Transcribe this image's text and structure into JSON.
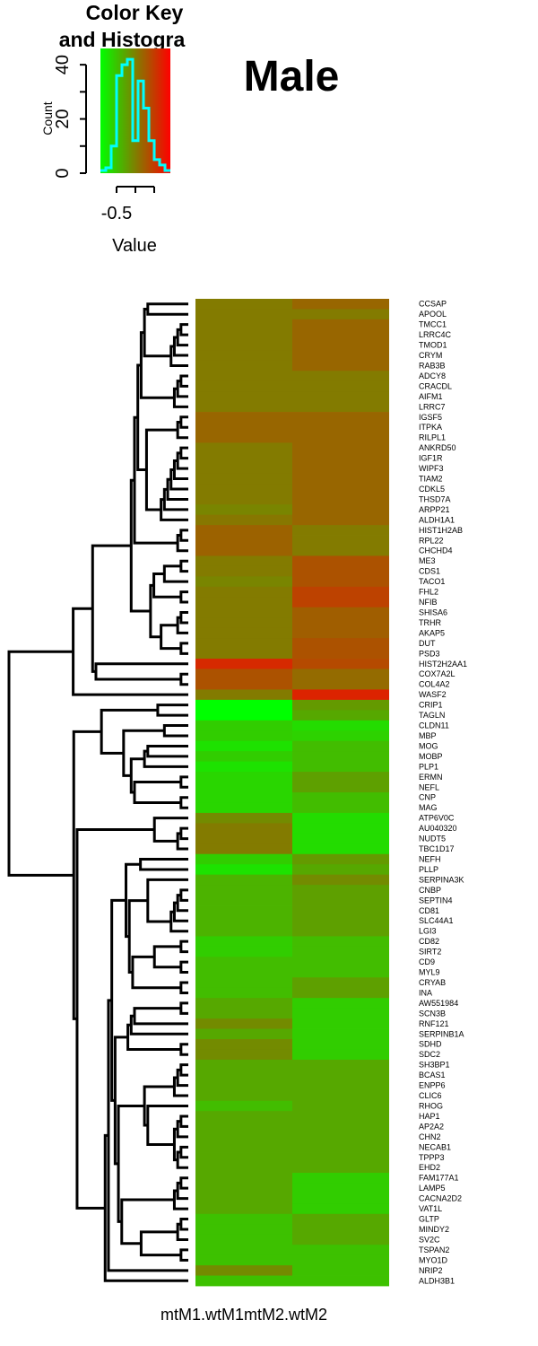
{
  "title": "Male",
  "color_key": {
    "title_line1": "Color Key",
    "title_line2": "and Histogra",
    "xlabel": "Value",
    "ylabel": "Count",
    "x_tick_labels": [
      "-0.5"
    ],
    "y_tick_labels": [
      "0",
      "20",
      "40"
    ],
    "hist_counts": [
      1,
      2,
      10,
      36,
      40,
      42,
      12,
      34,
      24,
      12,
      5,
      3,
      1
    ],
    "ylim": [
      0,
      46
    ],
    "colors": {
      "low": "#00ff00",
      "high": "#ff0000",
      "histogram_line": "#00ffff"
    }
  },
  "chart_data": {
    "type": "heatmap",
    "columns": [
      "mtM1.wtM1",
      "mtM2.wtM2"
    ],
    "x_axis_label": "mtM1.wtM1mtM2.wtM2",
    "color_scale": {
      "low": "#00ff00",
      "mid": "#7f7f00",
      "high": "#ff0000"
    },
    "rows": [
      {
        "gene": "CCSAP",
        "values": [
          0.02,
          0.12
        ]
      },
      {
        "gene": "APOOL",
        "values": [
          0.02,
          0.02
        ]
      },
      {
        "gene": "TMCC1",
        "values": [
          0.02,
          0.12
        ]
      },
      {
        "gene": "LRRC4C",
        "values": [
          0.02,
          0.12
        ]
      },
      {
        "gene": "TMOD1",
        "values": [
          0.02,
          0.12
        ]
      },
      {
        "gene": "CRYM",
        "values": [
          0.02,
          0.12
        ]
      },
      {
        "gene": "RAB3B",
        "values": [
          0.02,
          0.12
        ]
      },
      {
        "gene": "ADCY8",
        "values": [
          0.02,
          0.02
        ]
      },
      {
        "gene": "CRACDL",
        "values": [
          0.02,
          0.02
        ]
      },
      {
        "gene": "AIFM1",
        "values": [
          0.02,
          0.02
        ]
      },
      {
        "gene": "LRRC7",
        "values": [
          0.02,
          0.02
        ]
      },
      {
        "gene": "IGSF5",
        "values": [
          0.12,
          0.12
        ]
      },
      {
        "gene": "ITPKA",
        "values": [
          0.12,
          0.12
        ]
      },
      {
        "gene": "RILPL1",
        "values": [
          0.12,
          0.12
        ]
      },
      {
        "gene": "ANKRD50",
        "values": [
          0.02,
          0.12
        ]
      },
      {
        "gene": "IGF1R",
        "values": [
          0.02,
          0.12
        ]
      },
      {
        "gene": "WIPF3",
        "values": [
          0.02,
          0.12
        ]
      },
      {
        "gene": "TIAM2",
        "values": [
          0.02,
          0.12
        ]
      },
      {
        "gene": "CDKL5",
        "values": [
          0.02,
          0.12
        ]
      },
      {
        "gene": "THSD7A",
        "values": [
          0.02,
          0.12
        ]
      },
      {
        "gene": "ARPP21",
        "values": [
          -0.03,
          0.12
        ]
      },
      {
        "gene": "ALDH1A1",
        "values": [
          0.04,
          0.12
        ]
      },
      {
        "gene": "HIST1H2AB",
        "values": [
          0.14,
          0.02
        ]
      },
      {
        "gene": "RPL22",
        "values": [
          0.14,
          0.02
        ]
      },
      {
        "gene": "CHCHD4",
        "values": [
          0.14,
          0.02
        ]
      },
      {
        "gene": "ME3",
        "values": [
          0.02,
          0.22
        ]
      },
      {
        "gene": "CDS1",
        "values": [
          0.02,
          0.22
        ]
      },
      {
        "gene": "TACO1",
        "values": [
          -0.03,
          0.22
        ]
      },
      {
        "gene": "FHL2",
        "values": [
          0.02,
          0.3
        ]
      },
      {
        "gene": "NFIB",
        "values": [
          0.02,
          0.3
        ]
      },
      {
        "gene": "SHISA6",
        "values": [
          0.02,
          0.16
        ]
      },
      {
        "gene": "TRHR",
        "values": [
          0.02,
          0.16
        ]
      },
      {
        "gene": "AKAP5",
        "values": [
          0.02,
          0.16
        ]
      },
      {
        "gene": "DUT",
        "values": [
          0.02,
          0.22
        ]
      },
      {
        "gene": "PSD3",
        "values": [
          0.02,
          0.22
        ]
      },
      {
        "gene": "HIST2H2AA1",
        "values": [
          0.42,
          0.26
        ]
      },
      {
        "gene": "COX7A2L",
        "values": [
          0.22,
          0.1
        ]
      },
      {
        "gene": "COL4A2",
        "values": [
          0.22,
          0.1
        ]
      },
      {
        "gene": "WASF2",
        "values": [
          0.02,
          0.45
        ]
      },
      {
        "gene": "CRIP1",
        "values": [
          -0.62,
          -0.13
        ]
      },
      {
        "gene": "TAGLN",
        "values": [
          -0.62,
          -0.2
        ]
      },
      {
        "gene": "CLDN11",
        "values": [
          -0.38,
          -0.45
        ]
      },
      {
        "gene": "MBP",
        "values": [
          -0.38,
          -0.4
        ]
      },
      {
        "gene": "MOG",
        "values": [
          -0.48,
          -0.3
        ]
      },
      {
        "gene": "MOBP",
        "values": [
          -0.38,
          -0.3
        ]
      },
      {
        "gene": "PLP1",
        "values": [
          -0.48,
          -0.3
        ]
      },
      {
        "gene": "ERMN",
        "values": [
          -0.42,
          -0.16
        ]
      },
      {
        "gene": "NEFL",
        "values": [
          -0.42,
          -0.16
        ]
      },
      {
        "gene": "CNP",
        "values": [
          -0.42,
          -0.3
        ]
      },
      {
        "gene": "MAG",
        "values": [
          -0.42,
          -0.3
        ]
      },
      {
        "gene": "ATP6V0C",
        "values": [
          -0.06,
          -0.45
        ]
      },
      {
        "gene": "AU040320",
        "values": [
          0.02,
          -0.45
        ]
      },
      {
        "gene": "NUDT5",
        "values": [
          0.02,
          -0.45
        ]
      },
      {
        "gene": "TBC1D17",
        "values": [
          0.02,
          -0.45
        ]
      },
      {
        "gene": "NEFH",
        "values": [
          -0.38,
          -0.13
        ]
      },
      {
        "gene": "PLLP",
        "values": [
          -0.48,
          -0.2
        ]
      },
      {
        "gene": "SERPINA3K",
        "values": [
          -0.25,
          -0.06
        ]
      },
      {
        "gene": "CNBP",
        "values": [
          -0.25,
          -0.16
        ]
      },
      {
        "gene": "SEPTIN4",
        "values": [
          -0.25,
          -0.16
        ]
      },
      {
        "gene": "CD81",
        "values": [
          -0.25,
          -0.16
        ]
      },
      {
        "gene": "SLC44A1",
        "values": [
          -0.25,
          -0.16
        ]
      },
      {
        "gene": "LGI3",
        "values": [
          -0.25,
          -0.16
        ]
      },
      {
        "gene": "CD82",
        "values": [
          -0.38,
          -0.3
        ]
      },
      {
        "gene": "SIRT2",
        "values": [
          -0.38,
          -0.3
        ]
      },
      {
        "gene": "CD9",
        "values": [
          -0.3,
          -0.3
        ]
      },
      {
        "gene": "MYL9",
        "values": [
          -0.3,
          -0.3
        ]
      },
      {
        "gene": "CRYAB",
        "values": [
          -0.3,
          -0.16
        ]
      },
      {
        "gene": "INA",
        "values": [
          -0.3,
          -0.16
        ]
      },
      {
        "gene": "AW551984",
        "values": [
          -0.2,
          -0.38
        ]
      },
      {
        "gene": "SCN3B",
        "values": [
          -0.2,
          -0.38
        ]
      },
      {
        "gene": "RNF121",
        "values": [
          -0.06,
          -0.38
        ]
      },
      {
        "gene": "SERPINB1A",
        "values": [
          -0.2,
          -0.38
        ]
      },
      {
        "gene": "SDHD",
        "values": [
          -0.06,
          -0.38
        ]
      },
      {
        "gene": "SDC2",
        "values": [
          -0.06,
          -0.38
        ]
      },
      {
        "gene": "SH3BP1",
        "values": [
          -0.2,
          -0.2
        ]
      },
      {
        "gene": "BCAS1",
        "values": [
          -0.2,
          -0.2
        ]
      },
      {
        "gene": "ENPP6",
        "values": [
          -0.2,
          -0.2
        ]
      },
      {
        "gene": "CLIC6",
        "values": [
          -0.2,
          -0.2
        ]
      },
      {
        "gene": "RHOG",
        "values": [
          -0.3,
          -0.2
        ]
      },
      {
        "gene": "HAP1",
        "values": [
          -0.2,
          -0.2
        ]
      },
      {
        "gene": "AP2A2",
        "values": [
          -0.2,
          -0.2
        ]
      },
      {
        "gene": "CHN2",
        "values": [
          -0.2,
          -0.2
        ]
      },
      {
        "gene": "NECAB1",
        "values": [
          -0.2,
          -0.2
        ]
      },
      {
        "gene": "TPPP3",
        "values": [
          -0.2,
          -0.2
        ]
      },
      {
        "gene": "EHD2",
        "values": [
          -0.2,
          -0.2
        ]
      },
      {
        "gene": "FAM177A1",
        "values": [
          -0.2,
          -0.38
        ]
      },
      {
        "gene": "LAMP5",
        "values": [
          -0.2,
          -0.38
        ]
      },
      {
        "gene": "CACNA2D2",
        "values": [
          -0.2,
          -0.38
        ]
      },
      {
        "gene": "VAT1L",
        "values": [
          -0.2,
          -0.38
        ]
      },
      {
        "gene": "GLTP",
        "values": [
          -0.32,
          -0.2
        ]
      },
      {
        "gene": "MINDY2",
        "values": [
          -0.32,
          -0.2
        ]
      },
      {
        "gene": "SV2C",
        "values": [
          -0.32,
          -0.2
        ]
      },
      {
        "gene": "TSPAN2",
        "values": [
          -0.32,
          -0.32
        ]
      },
      {
        "gene": "MYO1D",
        "values": [
          -0.32,
          -0.32
        ]
      },
      {
        "gene": "NRIP2",
        "values": [
          -0.06,
          -0.32
        ]
      },
      {
        "gene": "ALDH3B1",
        "values": [
          -0.32,
          -0.32
        ]
      }
    ]
  }
}
